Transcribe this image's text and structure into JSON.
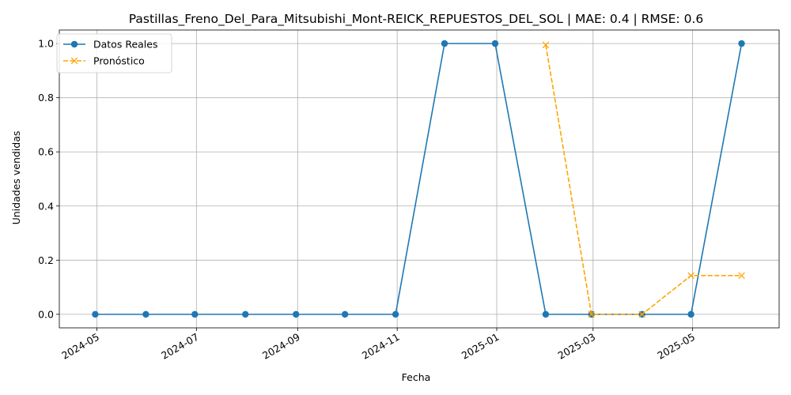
{
  "chart_data": {
    "type": "line",
    "title": "Pastillas_Freno_Del_Para_Mitsubishi_Mont-REICK_REPUESTOS_DEL_SOL | MAE: 0.4 | RMSE: 0.6",
    "xlabel": "Fecha",
    "ylabel": "Unidades vendidas",
    "xlim": [
      "2024-04-08",
      "2025-06-23"
    ],
    "ylim": [
      -0.05,
      1.05
    ],
    "x_ticks": [
      "2024-05",
      "2024-07",
      "2024-09",
      "2024-11",
      "2025-01",
      "2025-03",
      "2025-05"
    ],
    "x_tick_dates": [
      "2024-05-01",
      "2024-07-01",
      "2024-09-01",
      "2024-11-01",
      "2025-01-01",
      "2025-03-01",
      "2025-05-01"
    ],
    "y_ticks": [
      0.0,
      0.2,
      0.4,
      0.6,
      0.8,
      1.0
    ],
    "y_tick_labels": [
      "0.0",
      "0.2",
      "0.4",
      "0.6",
      "0.8",
      "1.0"
    ],
    "grid": true,
    "legend_position": "top-left",
    "series": [
      {
        "name": "Datos Reales",
        "color": "#1f77b4",
        "style": "solid",
        "marker": "circle",
        "x": [
          "2024-04-30",
          "2024-05-31",
          "2024-06-30",
          "2024-07-31",
          "2024-08-31",
          "2024-09-30",
          "2024-10-31",
          "2024-11-30",
          "2024-12-31",
          "2025-01-31",
          "2025-02-28",
          "2025-03-31",
          "2025-04-30",
          "2025-05-31"
        ],
        "values": [
          0,
          0,
          0,
          0,
          0,
          0,
          0,
          1,
          1,
          0,
          0,
          0,
          0,
          1
        ]
      },
      {
        "name": "Pronóstico",
        "color": "#ffa500",
        "style": "dashed",
        "marker": "x",
        "x": [
          "2025-01-31",
          "2025-02-28",
          "2025-03-31",
          "2025-04-30",
          "2025-05-31"
        ],
        "values": [
          0.995,
          0.0,
          0.0,
          0.143,
          0.143
        ]
      }
    ]
  }
}
